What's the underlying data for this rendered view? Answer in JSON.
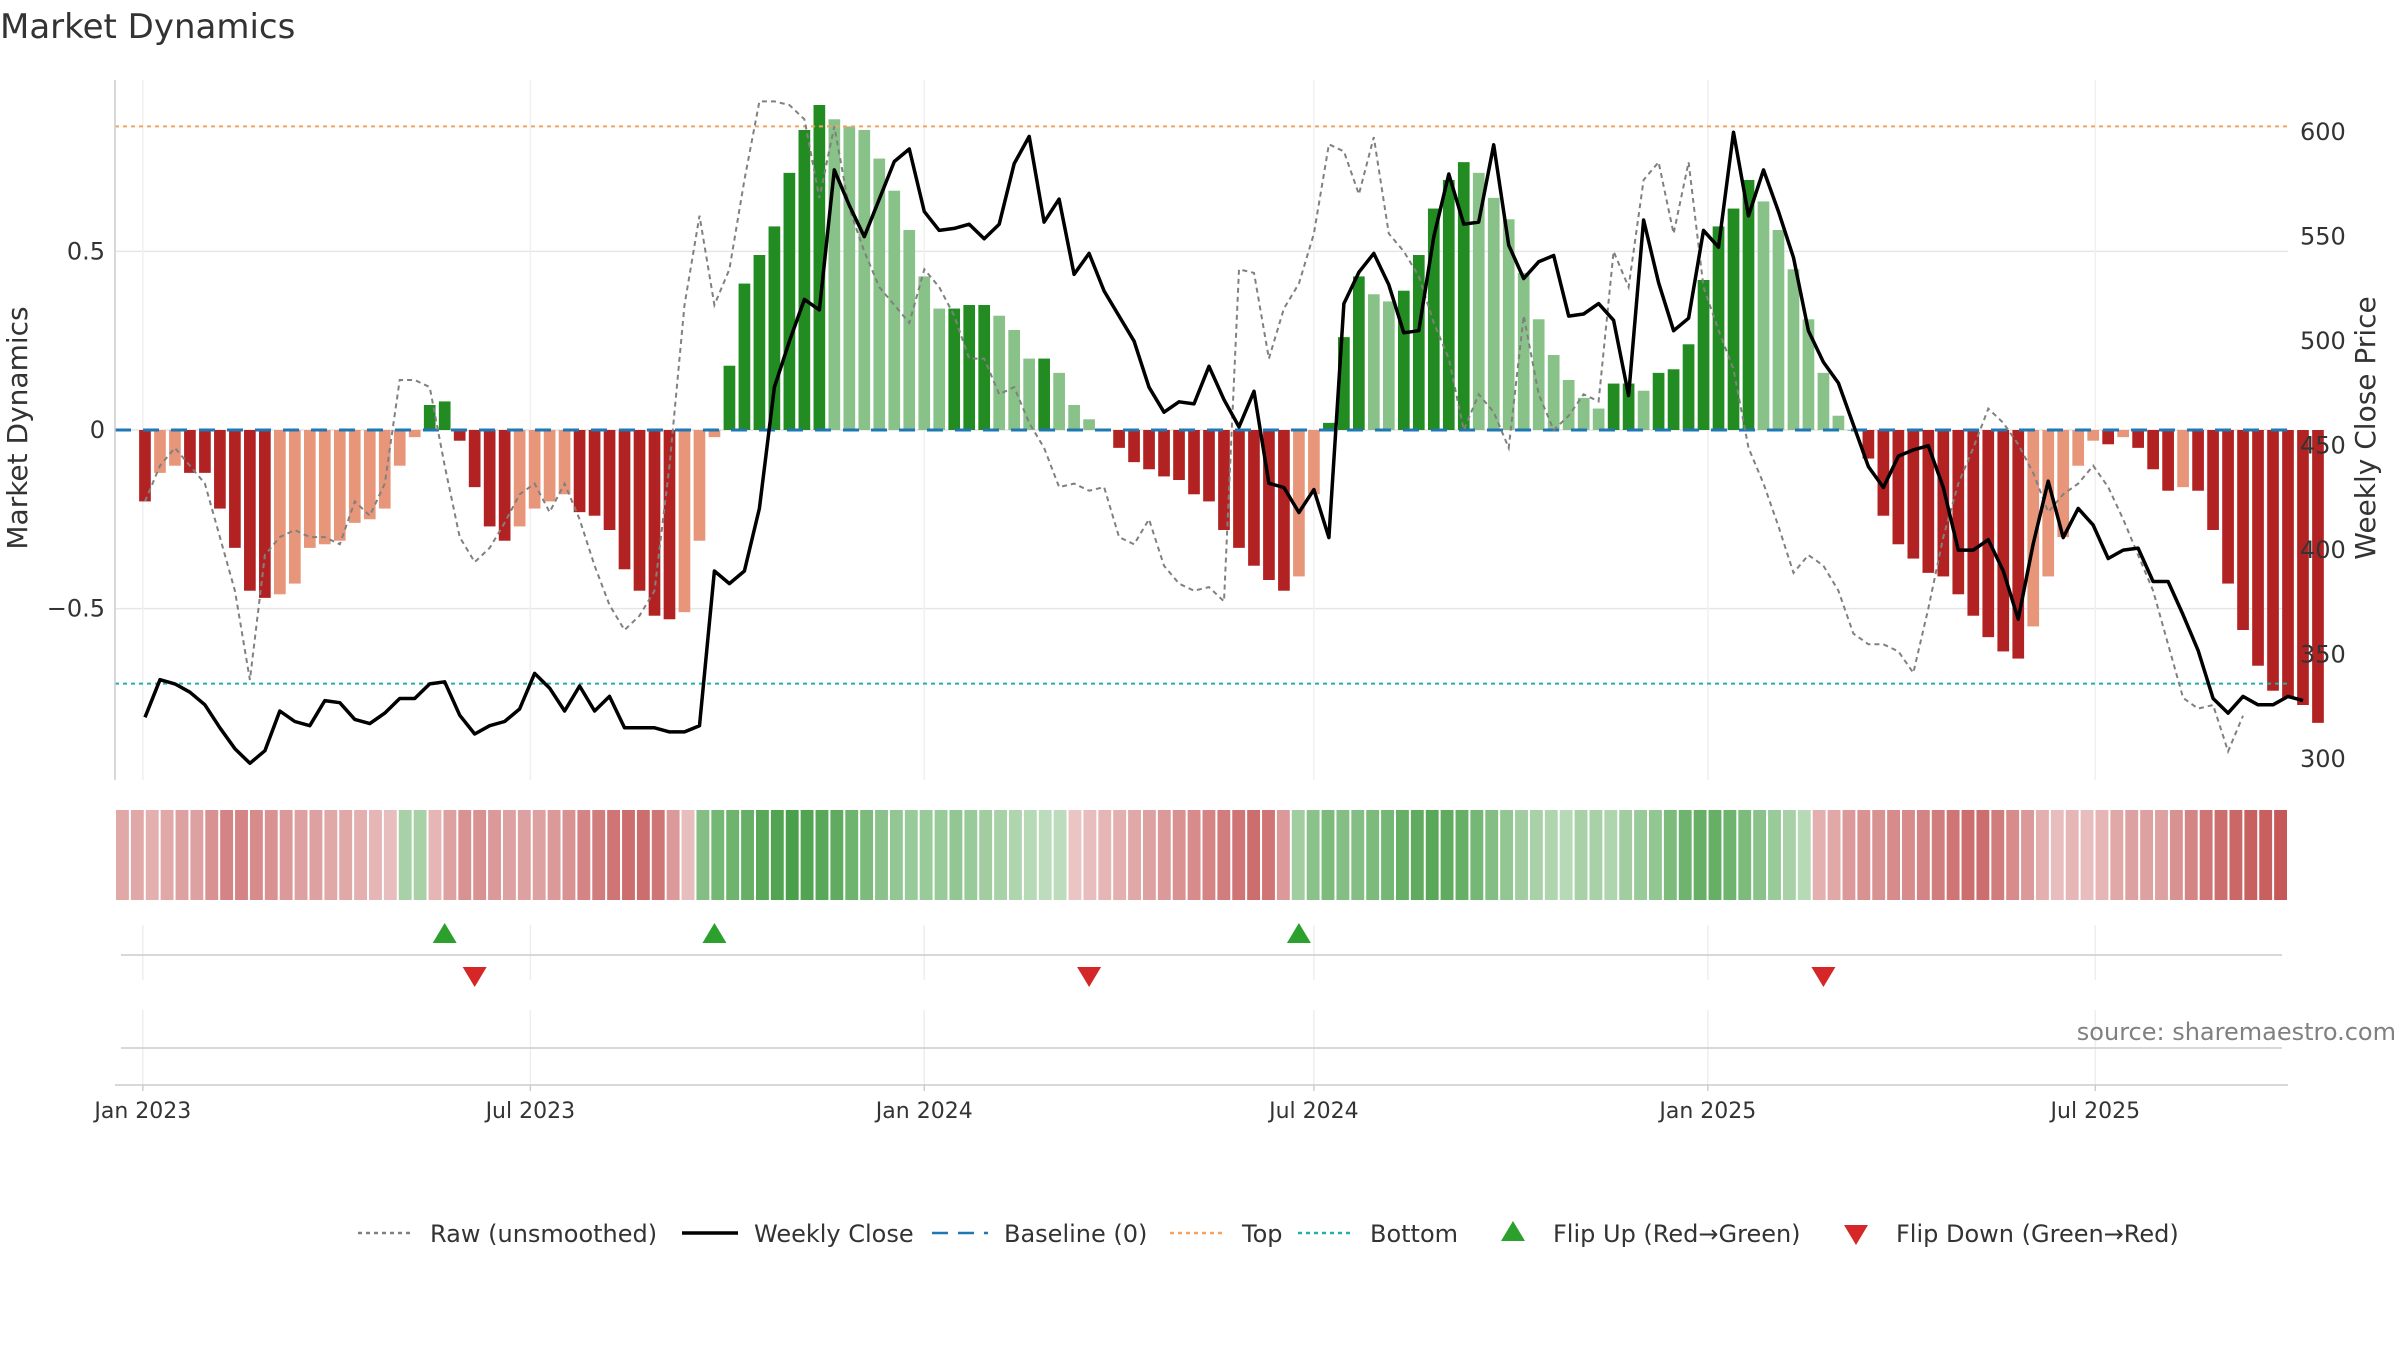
{
  "chart_data": {
    "type": "bar",
    "title": "Market Dynamics",
    "ylabel_left": "Market Dynamics",
    "ylabel_right": "Weekly Close Price",
    "source": "source: sharemaestro.com",
    "x_start": "2023-01-02",
    "x_step_days": 7,
    "x_ticks": [
      "Jan 2023",
      "Jul 2023",
      "Jan 2024",
      "Jul 2024",
      "Jan 2025",
      "Jul 2025"
    ],
    "x_tick_dates": [
      "2023-01-01",
      "2023-07-01",
      "2024-01-01",
      "2024-07-01",
      "2025-01-01",
      "2025-07-01"
    ],
    "x_range": [
      "2022-12-19",
      "2025-09-29"
    ],
    "ylim_left": [
      -0.98,
      0.98
    ],
    "yticks_left": [
      -0.5,
      0,
      0.5
    ],
    "ytick_labels_left": [
      "−0.5",
      "0",
      "0.5"
    ],
    "ylim_right": [
      290,
      625
    ],
    "yticks_right": [
      300,
      350,
      400,
      450,
      500,
      550,
      600
    ],
    "top_level": 0.85,
    "bottom_level": -0.71,
    "baseline": 0,
    "dynamics": [
      -0.2,
      -0.12,
      -0.1,
      -0.12,
      -0.12,
      -0.22,
      -0.33,
      -0.45,
      -0.47,
      -0.46,
      -0.43,
      -0.33,
      -0.32,
      -0.31,
      -0.26,
      -0.25,
      -0.22,
      -0.1,
      -0.02,
      0.07,
      0.08,
      -0.03,
      -0.16,
      -0.27,
      -0.31,
      -0.27,
      -0.22,
      -0.2,
      -0.18,
      -0.23,
      -0.24,
      -0.28,
      -0.39,
      -0.45,
      -0.52,
      -0.53,
      -0.51,
      -0.31,
      -0.02,
      0.18,
      0.41,
      0.49,
      0.57,
      0.72,
      0.84,
      0.91,
      0.87,
      0.85,
      0.84,
      0.76,
      0.67,
      0.56,
      0.43,
      0.34,
      0.34,
      0.35,
      0.35,
      0.32,
      0.28,
      0.2,
      0.2,
      0.16,
      0.07,
      0.03,
      0,
      -0.05,
      -0.09,
      -0.11,
      -0.13,
      -0.14,
      -0.18,
      -0.2,
      -0.28,
      -0.33,
      -0.38,
      -0.42,
      -0.45,
      -0.41,
      -0.18,
      0.02,
      0.26,
      0.43,
      0.38,
      0.36,
      0.39,
      0.49,
      0.62,
      0.7,
      0.75,
      0.72,
      0.65,
      0.59,
      0.44,
      0.31,
      0.21,
      0.14,
      0.09,
      0.06,
      0.13,
      0.13,
      0.11,
      0.16,
      0.17,
      0.24,
      0.42,
      0.57,
      0.62,
      0.7,
      0.64,
      0.56,
      0.45,
      0.31,
      0.16,
      0.04,
      0,
      -0.08,
      -0.24,
      -0.32,
      -0.36,
      -0.4,
      -0.41,
      -0.46,
      -0.52,
      -0.58,
      -0.62,
      -0.64,
      -0.55,
      -0.41,
      -0.3,
      -0.1,
      -0.03,
      -0.04,
      -0.02,
      -0.05,
      -0.11,
      -0.17,
      -0.16,
      -0.17,
      -0.28,
      -0.43,
      -0.56,
      -0.66,
      -0.73,
      -0.75,
      -0.77,
      -0.82
    ],
    "raw": [
      -0.2,
      -0.1,
      -0.05,
      -0.1,
      -0.15,
      -0.3,
      -0.45,
      -0.7,
      -0.35,
      -0.3,
      -0.28,
      -0.3,
      -0.3,
      -0.32,
      -0.2,
      -0.24,
      -0.15,
      0.14,
      0.14,
      0.12,
      -0.1,
      -0.3,
      -0.37,
      -0.33,
      -0.26,
      -0.18,
      -0.15,
      -0.23,
      -0.15,
      -0.25,
      -0.38,
      -0.49,
      -0.56,
      -0.52,
      -0.45,
      -0.1,
      0.35,
      0.6,
      0.35,
      0.45,
      0.7,
      0.92,
      0.92,
      0.91,
      0.87,
      0.65,
      0.85,
      0.62,
      0.5,
      0.4,
      0.35,
      0.3,
      0.45,
      0.4,
      0.32,
      0.2,
      0.2,
      0.1,
      0.12,
      0.02,
      -0.05,
      -0.16,
      -0.15,
      -0.17,
      -0.16,
      -0.3,
      -0.32,
      -0.25,
      -0.38,
      -0.43,
      -0.45,
      -0.44,
      -0.48,
      0.45,
      0.44,
      0.2,
      0.34,
      0.41,
      0.55,
      0.8,
      0.78,
      0.66,
      0.82,
      0.55,
      0.5,
      0.43,
      0.3,
      0.2,
      0,
      0.1,
      0.05,
      -0.05,
      0.32,
      0.1,
      0.0,
      0.04,
      0.1,
      0.08,
      0.5,
      0.4,
      0.7,
      0.75,
      0.55,
      0.75,
      0.4,
      0.28,
      0.17,
      -0.05,
      -0.15,
      -0.27,
      -0.4,
      -0.35,
      -0.38,
      -0.45,
      -0.57,
      -0.6,
      -0.6,
      -0.62,
      -0.68,
      -0.5,
      -0.3,
      -0.15,
      -0.05,
      0.06,
      0.02,
      -0.04,
      -0.12,
      -0.23,
      -0.18,
      -0.15,
      -0.1,
      -0.16,
      -0.25,
      -0.35,
      -0.45,
      -0.6,
      -0.75,
      -0.78,
      -0.77,
      -0.9,
      -0.8
    ],
    "close": [
      320,
      338,
      336,
      332,
      326,
      315,
      305,
      298,
      304,
      323,
      318,
      316,
      328,
      327,
      319,
      317,
      322,
      329,
      329,
      336,
      337,
      321,
      312,
      316,
      318,
      324,
      341,
      334,
      323,
      335,
      323,
      330,
      315,
      315,
      315,
      313,
      313,
      316,
      390,
      384,
      390,
      420,
      478,
      500,
      520,
      515,
      582,
      565,
      550,
      568,
      586,
      592,
      562,
      553,
      554,
      556,
      549,
      556,
      585,
      598,
      557,
      568,
      532,
      542,
      524,
      512,
      500,
      478,
      466,
      471,
      470,
      488,
      472,
      459,
      476,
      432,
      430,
      418,
      429,
      406,
      518,
      533,
      542,
      527,
      504,
      505,
      550,
      580,
      556,
      557,
      594,
      546,
      530,
      538,
      541,
      512,
      513,
      518,
      510,
      474,
      558,
      528,
      505,
      511,
      553,
      545,
      600,
      560,
      582,
      562,
      540,
      505,
      490,
      480,
      460,
      440,
      430,
      445,
      448,
      450,
      430,
      400,
      400,
      405,
      390,
      367,
      403,
      433,
      406,
      420,
      412,
      396,
      400,
      401,
      385,
      385,
      369,
      352,
      329,
      322,
      330,
      326,
      326,
      330,
      328
    ],
    "heat": [
      -0.3,
      -0.3,
      -0.25,
      -0.3,
      -0.35,
      -0.35,
      -0.45,
      -0.55,
      -0.55,
      -0.5,
      -0.45,
      -0.4,
      -0.35,
      -0.35,
      -0.3,
      -0.3,
      -0.25,
      -0.2,
      -0.15,
      0.3,
      0.3,
      -0.2,
      -0.35,
      -0.45,
      -0.45,
      -0.4,
      -0.35,
      -0.35,
      -0.35,
      -0.4,
      -0.45,
      -0.55,
      -0.6,
      -0.65,
      -0.7,
      -0.7,
      -0.65,
      -0.4,
      -0.15,
      0.55,
      0.65,
      0.7,
      0.75,
      0.85,
      0.9,
      0.95,
      0.9,
      0.85,
      0.8,
      0.7,
      0.6,
      0.5,
      0.45,
      0.4,
      0.4,
      0.4,
      0.45,
      0.4,
      0.35,
      0.3,
      0.25,
      0.2,
      0.15,
      0.15,
      -0.1,
      -0.15,
      -0.2,
      -0.25,
      -0.3,
      -0.35,
      -0.4,
      -0.45,
      -0.5,
      -0.55,
      -0.6,
      -0.65,
      -0.7,
      -0.65,
      -0.4,
      0.35,
      0.5,
      0.6,
      0.55,
      0.55,
      0.6,
      0.65,
      0.75,
      0.8,
      0.85,
      0.8,
      0.75,
      0.65,
      0.55,
      0.45,
      0.35,
      0.3,
      0.25,
      0.2,
      0.3,
      0.3,
      0.25,
      0.35,
      0.4,
      0.45,
      0.6,
      0.7,
      0.75,
      0.75,
      0.7,
      0.6,
      0.5,
      0.4,
      0.3,
      0.2,
      -0.25,
      -0.3,
      -0.4,
      -0.45,
      -0.45,
      -0.5,
      -0.5,
      -0.55,
      -0.6,
      -0.65,
      -0.7,
      -0.7,
      -0.6,
      -0.5,
      -0.4,
      -0.25,
      -0.15,
      -0.2,
      -0.15,
      -0.2,
      -0.3,
      -0.35,
      -0.35,
      -0.35,
      -0.45,
      -0.55,
      -0.65,
      -0.7,
      -0.75,
      -0.8,
      -0.8,
      -0.85
    ],
    "flip_up_dates": [
      "2023-05-22",
      "2023-09-25",
      "2024-06-24"
    ],
    "flip_down_dates": [
      "2023-06-05",
      "2024-03-18",
      "2025-02-24"
    ],
    "legend": [
      {
        "label": "Raw (unsmoothed)",
        "style": "dotted",
        "color": "#808080"
      },
      {
        "label": "Weekly Close",
        "style": "solid",
        "color": "#000000"
      },
      {
        "label": "Baseline (0)",
        "style": "dashed",
        "color": "#1f77b4"
      },
      {
        "label": "Top",
        "style": "dotted",
        "color": "#f4a460"
      },
      {
        "label": "Bottom",
        "style": "dotted",
        "color": "#20b2aa"
      },
      {
        "label": "Flip Up (Red→Green)",
        "style": "triangle-up",
        "color": "#2ca02c"
      },
      {
        "label": "Flip Down (Green→Red)",
        "style": "triangle-down",
        "color": "#d62728"
      }
    ],
    "legend_placement": "bottom-center",
    "grid": true,
    "colors": {
      "strong_green": "#228b22",
      "light_green": "#88c288",
      "strong_red": "#b22222",
      "light_red": "#e8967a",
      "raw": "#808080",
      "close": "#000000",
      "baseline": "#1f77b4",
      "top": "#f4a460",
      "bottom": "#20b2aa",
      "flip_up": "#2ca02c",
      "flip_down": "#d62728",
      "grid": "#e6e6e6",
      "axis": "#cccccc"
    }
  }
}
